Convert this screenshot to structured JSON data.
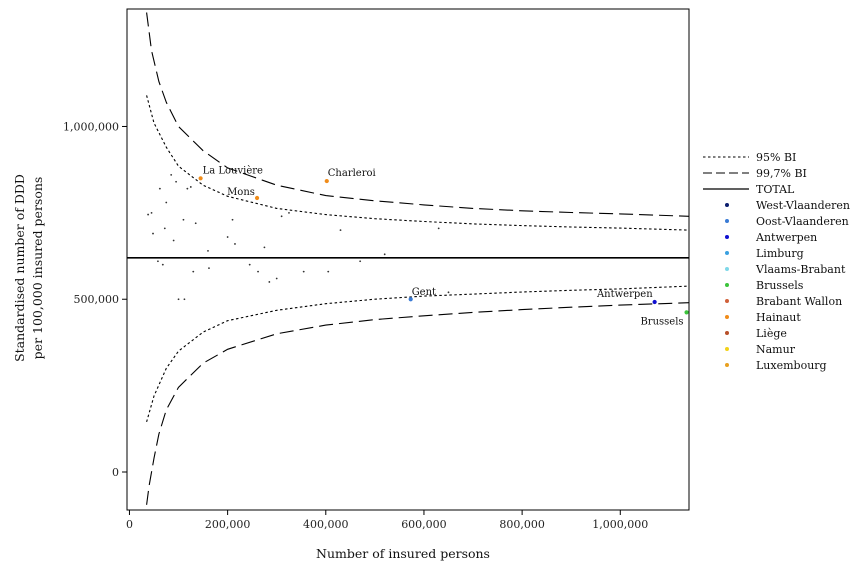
{
  "chart_data": {
    "type": "scatter",
    "xlabel": "Number of insured persons",
    "ylabel_lines": [
      "Standardised number of DDD",
      "per 100,000 insured persons"
    ],
    "xlim": [
      -5000,
      1140000
    ],
    "ylim": [
      -110000,
      1340000
    ],
    "x_ticks": [
      {
        "value": 0,
        "label": "0"
      },
      {
        "value": 200000,
        "label": "200,000"
      },
      {
        "value": 400000,
        "label": "400,000"
      },
      {
        "value": 600000,
        "label": "600,000"
      },
      {
        "value": 800000,
        "label": "800,000"
      },
      {
        "value": 1000000,
        "label": "1,000,000"
      }
    ],
    "y_ticks": [
      {
        "value": 0,
        "label": "0"
      },
      {
        "value": 500000,
        "label": "500,000"
      },
      {
        "value": 1000000,
        "label": "1,000,000"
      }
    ],
    "total": 620000,
    "bands": [
      {
        "name": "95% BI",
        "style": "dotted",
        "upper": [
          [
            35000,
            1090000
          ],
          [
            50000,
            1010000
          ],
          [
            75000,
            940000
          ],
          [
            100000,
            885000
          ],
          [
            150000,
            830000
          ],
          [
            200000,
            798000
          ],
          [
            300000,
            763000
          ],
          [
            400000,
            745000
          ],
          [
            500000,
            733000
          ],
          [
            600000,
            725000
          ],
          [
            700000,
            718000
          ],
          [
            800000,
            713000
          ],
          [
            900000,
            709000
          ],
          [
            1000000,
            706000
          ],
          [
            1140000,
            700000
          ]
        ],
        "lower": [
          [
            35000,
            145000
          ],
          [
            50000,
            220000
          ],
          [
            75000,
            300000
          ],
          [
            100000,
            350000
          ],
          [
            150000,
            405000
          ],
          [
            200000,
            438000
          ],
          [
            300000,
            468000
          ],
          [
            400000,
            487000
          ],
          [
            500000,
            500000
          ],
          [
            600000,
            509000
          ],
          [
            700000,
            515000
          ],
          [
            800000,
            521000
          ],
          [
            900000,
            526000
          ],
          [
            1000000,
            530000
          ],
          [
            1140000,
            538000
          ]
        ]
      },
      {
        "name": "99,7% BI",
        "style": "dashed",
        "upper": [
          [
            35000,
            1330000
          ],
          [
            45000,
            1220000
          ],
          [
            60000,
            1130000
          ],
          [
            75000,
            1070000
          ],
          [
            100000,
            1000000
          ],
          [
            150000,
            930000
          ],
          [
            200000,
            880000
          ],
          [
            300000,
            830000
          ],
          [
            400000,
            800000
          ],
          [
            500000,
            785000
          ],
          [
            600000,
            773000
          ],
          [
            700000,
            763000
          ],
          [
            800000,
            756000
          ],
          [
            900000,
            751000
          ],
          [
            1000000,
            747000
          ],
          [
            1140000,
            740000
          ]
        ],
        "lower": [
          [
            35000,
            -95000
          ],
          [
            40000,
            -40000
          ],
          [
            50000,
            40000
          ],
          [
            60000,
            110000
          ],
          [
            75000,
            180000
          ],
          [
            100000,
            245000
          ],
          [
            150000,
            315000
          ],
          [
            200000,
            355000
          ],
          [
            300000,
            400000
          ],
          [
            400000,
            425000
          ],
          [
            500000,
            441000
          ],
          [
            600000,
            452000
          ],
          [
            700000,
            462000
          ],
          [
            800000,
            470000
          ],
          [
            900000,
            477000
          ],
          [
            1000000,
            483000
          ],
          [
            1140000,
            490000
          ]
        ]
      }
    ],
    "legend_lines": [
      {
        "label": "95% BI",
        "style": "dotted"
      },
      {
        "label": "99,7% BI",
        "style": "dashed"
      },
      {
        "label": "TOTAL",
        "style": "solid"
      }
    ],
    "provinces": [
      {
        "name": "West-Vlaanderen",
        "color": "#0b1d6e"
      },
      {
        "name": "Oost-Vlaanderen",
        "color": "#3a7bd5"
      },
      {
        "name": "Antwerpen",
        "color": "#1010d0"
      },
      {
        "name": "Limburg",
        "color": "#3aa0e0"
      },
      {
        "name": "Vlaams-Brabant",
        "color": "#7fd8e8"
      },
      {
        "name": "Brussels",
        "color": "#3cc43c"
      },
      {
        "name": "Brabant Wallon",
        "color": "#d0603a"
      },
      {
        "name": "Hainaut",
        "color": "#f08c1a"
      },
      {
        "name": "Liège",
        "color": "#b8502a"
      },
      {
        "name": "Namur",
        "color": "#f2d21a"
      },
      {
        "name": "Luxembourg",
        "color": "#e8a020"
      }
    ],
    "labeled_points": [
      {
        "label": "La Louvière",
        "x": 145000,
        "y": 850000,
        "province": "Hainaut",
        "label_dx": 2,
        "label_dy": -5,
        "anchor": "start"
      },
      {
        "label": "Mons",
        "x": 260000,
        "y": 793000,
        "province": "Hainaut",
        "label_dx": -30,
        "label_dy": -3,
        "anchor": "start"
      },
      {
        "label": "Charleroi",
        "x": 402000,
        "y": 842000,
        "province": "Hainaut",
        "label_dx": 1,
        "label_dy": -5,
        "anchor": "start"
      },
      {
        "label": "Gent",
        "x": 573000,
        "y": 500000,
        "province": "Oost-Vlaanderen",
        "label_dx": 1,
        "label_dy": -4,
        "anchor": "start"
      },
      {
        "label": "Antwerpen",
        "x": 1070000,
        "y": 492000,
        "province": "Antwerpen",
        "label_dx": -2,
        "label_dy": -5,
        "anchor": "end"
      },
      {
        "label": "Brussels",
        "x": 1135000,
        "y": 462000,
        "province": "Brussels",
        "label_dx": -3,
        "label_dy": 12,
        "anchor": "end"
      }
    ],
    "other_points": [
      [
        38000,
        745000
      ],
      [
        45000,
        750000
      ],
      [
        48000,
        690000
      ],
      [
        58000,
        610000
      ],
      [
        62000,
        820000
      ],
      [
        68000,
        600000
      ],
      [
        72000,
        705000
      ],
      [
        75000,
        780000
      ],
      [
        85000,
        860000
      ],
      [
        90000,
        670000
      ],
      [
        95000,
        840000
      ],
      [
        100000,
        500000
      ],
      [
        110000,
        730000
      ],
      [
        112000,
        500000
      ],
      [
        118000,
        820000
      ],
      [
        125000,
        825000
      ],
      [
        130000,
        580000
      ],
      [
        135000,
        720000
      ],
      [
        160000,
        640000
      ],
      [
        162000,
        590000
      ],
      [
        200000,
        680000
      ],
      [
        210000,
        730000
      ],
      [
        215000,
        660000
      ],
      [
        245000,
        600000
      ],
      [
        262000,
        580000
      ],
      [
        275000,
        650000
      ],
      [
        285000,
        550000
      ],
      [
        300000,
        560000
      ],
      [
        310000,
        740000
      ],
      [
        325000,
        750000
      ],
      [
        355000,
        580000
      ],
      [
        405000,
        580000
      ],
      [
        430000,
        700000
      ],
      [
        470000,
        610000
      ],
      [
        520000,
        630000
      ],
      [
        630000,
        705000
      ],
      [
        650000,
        520000
      ]
    ]
  }
}
